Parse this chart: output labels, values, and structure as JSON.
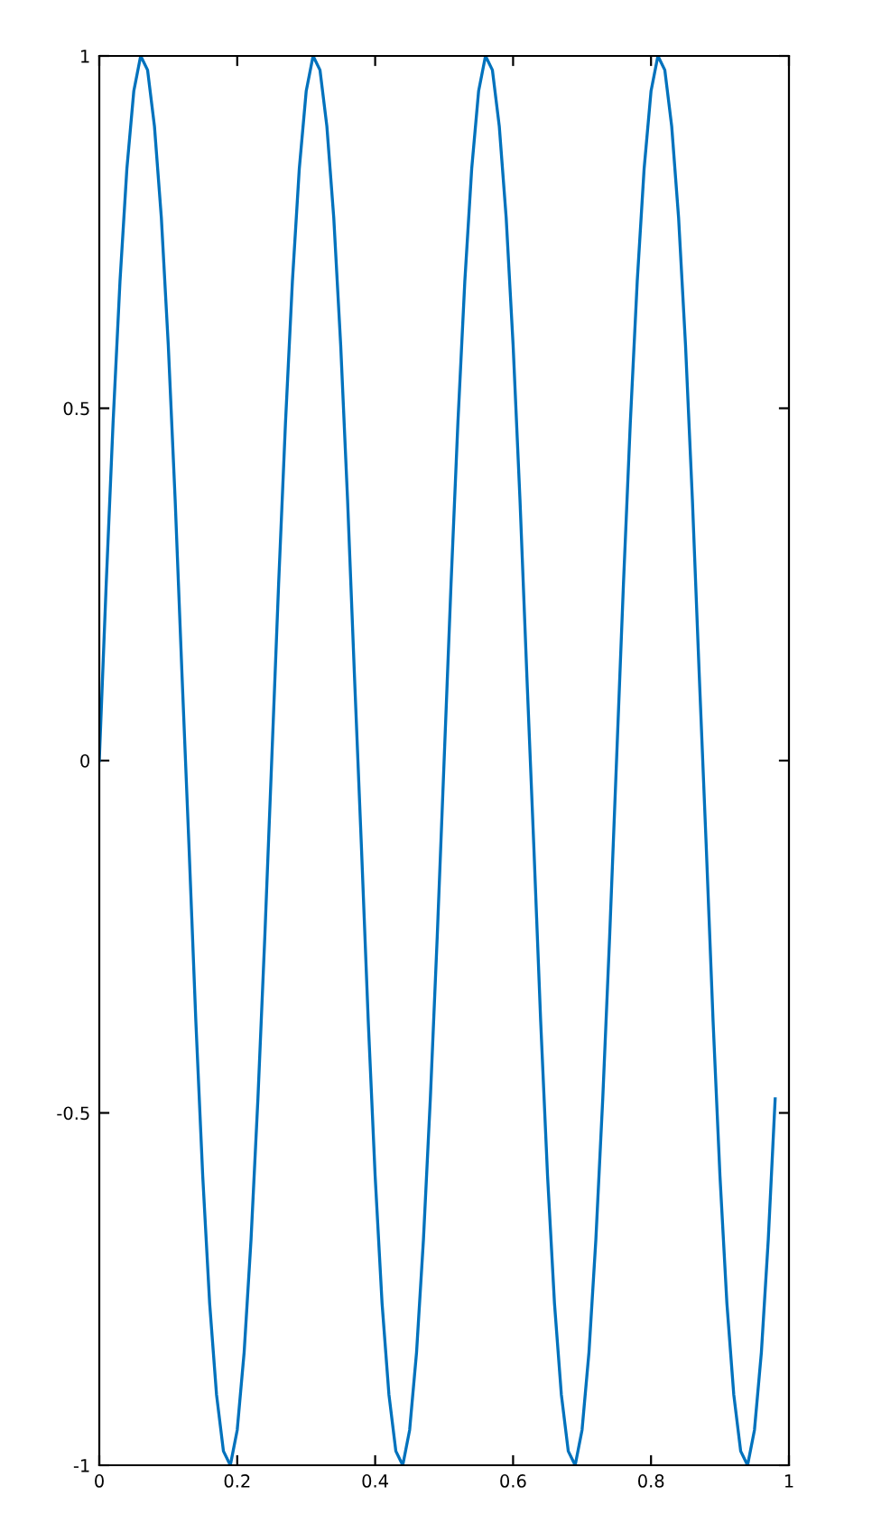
{
  "chart_data": {
    "type": "line",
    "x": [
      0,
      0.01,
      0.02,
      0.03,
      0.04,
      0.05,
      0.06,
      0.07,
      0.08,
      0.09,
      0.1,
      0.11,
      0.12,
      0.13,
      0.14,
      0.15,
      0.16,
      0.17,
      0.18,
      0.19,
      0.2,
      0.21,
      0.22,
      0.23,
      0.24,
      0.25,
      0.26,
      0.27,
      0.28,
      0.29,
      0.3,
      0.31,
      0.32,
      0.33,
      0.34,
      0.35,
      0.36,
      0.37,
      0.38,
      0.39,
      0.4,
      0.41,
      0.42,
      0.43,
      0.44,
      0.45,
      0.46,
      0.47,
      0.48,
      0.49,
      0.5,
      0.51,
      0.52,
      0.53,
      0.54,
      0.55,
      0.56,
      0.57,
      0.58,
      0.59,
      0.6,
      0.61,
      0.62,
      0.63,
      0.64,
      0.65,
      0.66,
      0.67,
      0.68,
      0.69,
      0.7,
      0.71,
      0.72,
      0.73,
      0.74,
      0.75,
      0.76,
      0.77,
      0.78,
      0.79,
      0.8,
      0.81,
      0.82,
      0.83,
      0.84,
      0.85,
      0.86,
      0.87,
      0.88,
      0.89,
      0.9,
      0.91,
      0.92,
      0.93,
      0.94,
      0.95,
      0.96,
      0.97,
      0.98
    ],
    "series": [
      {
        "color": "#0072bd",
        "values": [
          0,
          0.25,
          0.48,
          0.68,
          0.84,
          0.95,
          1.0,
          0.98,
          0.9,
          0.77,
          0.59,
          0.37,
          0.12,
          -0.12,
          -0.37,
          -0.59,
          -0.77,
          -0.9,
          -0.98,
          -1.0,
          -0.95,
          -0.84,
          -0.68,
          -0.48,
          -0.25,
          0,
          0.25,
          0.48,
          0.68,
          0.84,
          0.95,
          1.0,
          0.98,
          0.9,
          0.77,
          0.59,
          0.37,
          0.12,
          -0.12,
          -0.37,
          -0.59,
          -0.77,
          -0.9,
          -0.98,
          -1.0,
          -0.95,
          -0.84,
          -0.68,
          -0.48,
          -0.25,
          0,
          0.25,
          0.48,
          0.68,
          0.84,
          0.95,
          1.0,
          0.98,
          0.9,
          0.77,
          0.59,
          0.37,
          0.12,
          -0.12,
          -0.37,
          -0.59,
          -0.77,
          -0.9,
          -0.98,
          -1.0,
          -0.95,
          -0.84,
          -0.68,
          -0.48,
          -0.25,
          0,
          0.25,
          0.48,
          0.68,
          0.84,
          0.95,
          1.0,
          0.98,
          0.9,
          0.77,
          0.59,
          0.37,
          0.12,
          -0.12,
          -0.37,
          -0.59,
          -0.77,
          -0.9,
          -0.98,
          -1.0,
          -0.95,
          -0.84,
          -0.68,
          -0.48
        ]
      }
    ],
    "xlim": [
      0,
      1
    ],
    "ylim": [
      -1,
      1
    ],
    "xticks": [
      0,
      0.2,
      0.4,
      0.6,
      0.8,
      1
    ],
    "yticks": [
      -1,
      -0.5,
      0,
      0.5,
      1
    ],
    "grid": false,
    "legend": false
  }
}
